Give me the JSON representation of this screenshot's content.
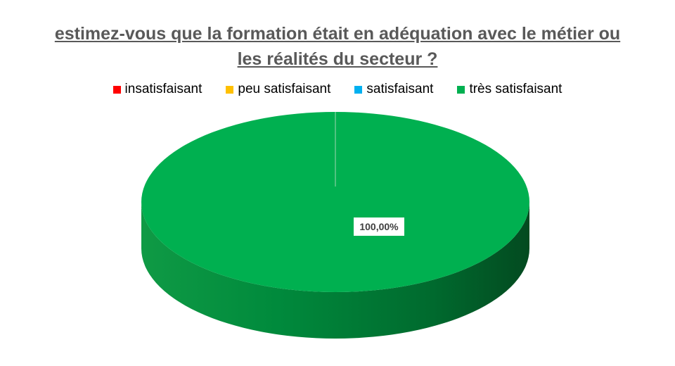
{
  "chart_data": {
    "type": "pie",
    "title_lines": [
      "estimez-vous que la formation était en adéquation avec le métier ou",
      "les réalités du secteur ?"
    ],
    "categories": [
      "insatisfaisant",
      "peu satisfaisant",
      "satisfaisant",
      "très satisfaisant"
    ],
    "values": [
      0,
      0,
      0,
      100
    ],
    "colors": [
      "#ff0000",
      "#ffc000",
      "#00b0f0",
      "#00b050"
    ],
    "data_labels": [
      "",
      "",
      "",
      "100,00%"
    ],
    "legend_position": "top"
  }
}
